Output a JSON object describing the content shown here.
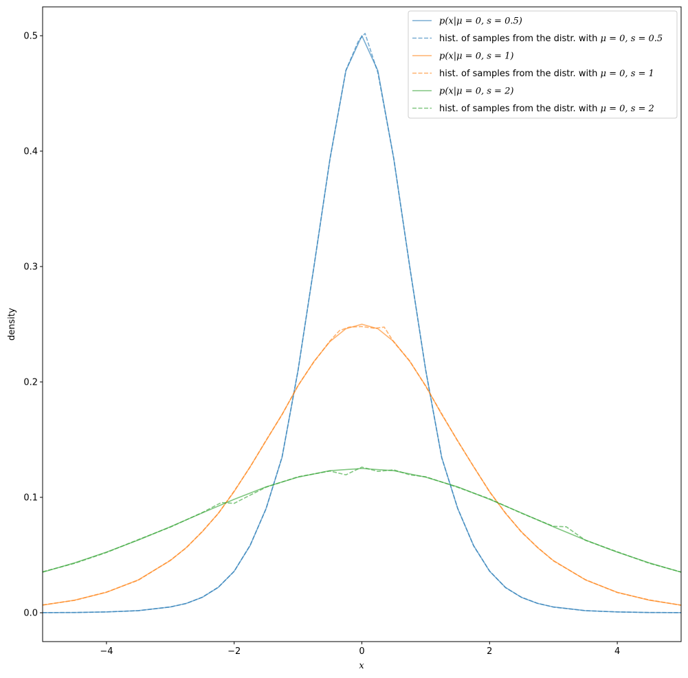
{
  "chart_data": {
    "type": "line",
    "title": "",
    "xlabel": "x",
    "ylabel": "density",
    "xlim": [
      -5,
      5
    ],
    "ylim": [
      -0.025,
      0.525
    ],
    "xticks": [
      -4,
      -2,
      0,
      2,
      4
    ],
    "xtick_labels": [
      "−4",
      "−2",
      "0",
      "2",
      "4"
    ],
    "yticks": [
      0.0,
      0.1,
      0.2,
      0.3,
      0.4,
      0.5
    ],
    "ytick_labels": [
      "0.0",
      "0.1",
      "0.2",
      "0.3",
      "0.4",
      "0.5"
    ],
    "grid": false,
    "legend_position": "top-right",
    "colors": {
      "s05": "#1f77b4",
      "s1": "#ff7f0e",
      "s2": "#2ca02c"
    },
    "series": [
      {
        "name": "p(x|μ = 0, s = 0.5)",
        "style": "solid",
        "color": "#1f77b4",
        "x": [
          -5,
          -4.5,
          -4,
          -3.5,
          -3,
          -2.75,
          -2.5,
          -2.25,
          -2,
          -1.75,
          -1.5,
          -1.25,
          -1,
          -0.75,
          -0.5,
          -0.25,
          0,
          0.25,
          0.5,
          0.75,
          1,
          1.25,
          1.5,
          1.75,
          2,
          2.25,
          2.5,
          2.75,
          3,
          3.5,
          4,
          4.5,
          5
        ],
        "y": [
          0.0001,
          0.0002,
          0.0007,
          0.0018,
          0.005,
          0.0081,
          0.0133,
          0.0219,
          0.036,
          0.0582,
          0.0904,
          0.1347,
          0.21,
          0.2999,
          0.3932,
          0.4698,
          0.5,
          0.4698,
          0.3932,
          0.2999,
          0.21,
          0.1347,
          0.0904,
          0.0582,
          0.036,
          0.0219,
          0.0133,
          0.0081,
          0.005,
          0.0018,
          0.0007,
          0.0002,
          0.0001
        ]
      },
      {
        "name": "hist. of samples from the distr. with μ = 0, s = 0.5",
        "style": "dashed",
        "color": "#1f77b4",
        "x": [
          -5,
          -4.5,
          -4,
          -3.5,
          -3,
          -2.75,
          -2.5,
          -2.25,
          -2,
          -1.75,
          -1.5,
          -1.25,
          -1,
          -0.75,
          -0.5,
          -0.25,
          -0.05,
          0.05,
          0.25,
          0.5,
          0.75,
          1,
          1.25,
          1.5,
          1.75,
          2,
          2.25,
          2.5,
          2.75,
          3,
          3.5,
          4,
          4.5,
          5
        ],
        "y": [
          0.0001,
          0.0002,
          0.0007,
          0.0018,
          0.005,
          0.008,
          0.0135,
          0.0221,
          0.0358,
          0.0585,
          0.0901,
          0.135,
          0.2097,
          0.3003,
          0.3929,
          0.47,
          0.496,
          0.502,
          0.468,
          0.3935,
          0.2995,
          0.2103,
          0.1344,
          0.0906,
          0.0579,
          0.0362,
          0.0217,
          0.0134,
          0.0082,
          0.0049,
          0.0018,
          0.0007,
          0.0002,
          0.0001
        ]
      },
      {
        "name": "p(x|μ = 0, s = 1)",
        "style": "solid",
        "color": "#ff7f0e",
        "x": [
          -5,
          -4.5,
          -4,
          -3.5,
          -3,
          -2.75,
          -2.5,
          -2.25,
          -2,
          -1.75,
          -1.5,
          -1.25,
          -1,
          -0.75,
          -0.5,
          -0.25,
          0,
          0.25,
          0.5,
          0.75,
          1,
          1.25,
          1.5,
          1.75,
          2,
          2.25,
          2.5,
          2.75,
          3,
          3.5,
          4,
          4.5,
          5
        ],
        "y": [
          0.0066,
          0.0109,
          0.0177,
          0.0285,
          0.0452,
          0.0565,
          0.0701,
          0.0861,
          0.105,
          0.1265,
          0.1491,
          0.1719,
          0.1966,
          0.2178,
          0.235,
          0.2461,
          0.25,
          0.2461,
          0.235,
          0.2178,
          0.1966,
          0.1719,
          0.1491,
          0.1265,
          0.105,
          0.0861,
          0.0701,
          0.0565,
          0.0452,
          0.0285,
          0.0177,
          0.0109,
          0.0066
        ]
      },
      {
        "name": "hist. of samples from the distr. with μ = 0, s = 1",
        "style": "dashed",
        "color": "#ff7f0e",
        "x": [
          -5,
          -4.5,
          -4,
          -3.5,
          -3,
          -2.75,
          -2.5,
          -2.25,
          -2,
          -1.75,
          -1.5,
          -1.25,
          -1,
          -0.75,
          -0.5,
          -0.35,
          -0.2,
          0,
          0.2,
          0.35,
          0.5,
          0.75,
          1,
          1.25,
          1.5,
          1.75,
          2,
          2.25,
          2.5,
          2.75,
          3,
          3.5,
          4,
          4.5,
          5
        ],
        "y": [
          0.0068,
          0.0107,
          0.0179,
          0.0282,
          0.0455,
          0.0562,
          0.0705,
          0.0858,
          0.1055,
          0.1262,
          0.1495,
          0.1716,
          0.197,
          0.2174,
          0.2355,
          0.2445,
          0.2475,
          0.248,
          0.2465,
          0.2475,
          0.2345,
          0.2182,
          0.1962,
          0.1725,
          0.1487,
          0.1268,
          0.1047,
          0.0865,
          0.0697,
          0.0568,
          0.0449,
          0.0287,
          0.0175,
          0.0111,
          0.0065
        ]
      },
      {
        "name": "p(x|μ = 0, s = 2)",
        "style": "solid",
        "color": "#2ca02c",
        "x": [
          -5,
          -4.5,
          -4,
          -3.5,
          -3,
          -2.5,
          -2,
          -1.5,
          -1,
          -0.5,
          0,
          0.5,
          1,
          1.5,
          2,
          2.5,
          3,
          3.5,
          4,
          4.5,
          5
        ],
        "y": [
          0.0351,
          0.0432,
          0.0525,
          0.063,
          0.0745,
          0.0865,
          0.0983,
          0.1091,
          0.1175,
          0.1231,
          0.125,
          0.1231,
          0.1175,
          0.1091,
          0.0983,
          0.0865,
          0.0745,
          0.063,
          0.0525,
          0.0432,
          0.0351
        ]
      },
      {
        "name": "hist. of samples from the distr. with μ = 0, s = 2",
        "style": "dashed",
        "color": "#2ca02c",
        "x": [
          -5,
          -4.5,
          -4,
          -3.5,
          -3,
          -2.5,
          -2.2,
          -2,
          -1.8,
          -1.5,
          -1,
          -0.5,
          -0.25,
          0,
          0.25,
          0.5,
          0.75,
          1,
          1.5,
          2,
          2.5,
          3,
          3.2,
          3.5,
          4,
          4.5,
          5
        ],
        "y": [
          0.0355,
          0.0428,
          0.0522,
          0.0634,
          0.0742,
          0.0868,
          0.0955,
          0.0948,
          0.1005,
          0.1088,
          0.1178,
          0.1228,
          0.1195,
          0.1262,
          0.1225,
          0.1238,
          0.1195,
          0.1178,
          0.1087,
          0.0987,
          0.0862,
          0.0749,
          0.0745,
          0.0628,
          0.0528,
          0.0429,
          0.0353
        ]
      }
    ],
    "legend": [
      {
        "label_pre": "",
        "label_math": "p(x|μ = 0, s = 0.5)",
        "style": "solid",
        "color": "#1f77b4"
      },
      {
        "label_pre": "hist. of samples from the distr. with ",
        "label_math": "μ = 0, s = 0.5",
        "style": "dashed",
        "color": "#1f77b4"
      },
      {
        "label_pre": "",
        "label_math": "p(x|μ = 0, s = 1)",
        "style": "solid",
        "color": "#ff7f0e"
      },
      {
        "label_pre": "hist. of samples from the distr. with ",
        "label_math": "μ = 0, s = 1",
        "style": "dashed",
        "color": "#ff7f0e"
      },
      {
        "label_pre": "",
        "label_math": "p(x|μ = 0, s = 2)",
        "style": "solid",
        "color": "#2ca02c"
      },
      {
        "label_pre": "hist. of samples from the distr. with ",
        "label_math": "μ = 0, s = 2",
        "style": "dashed",
        "color": "#2ca02c"
      }
    ]
  }
}
